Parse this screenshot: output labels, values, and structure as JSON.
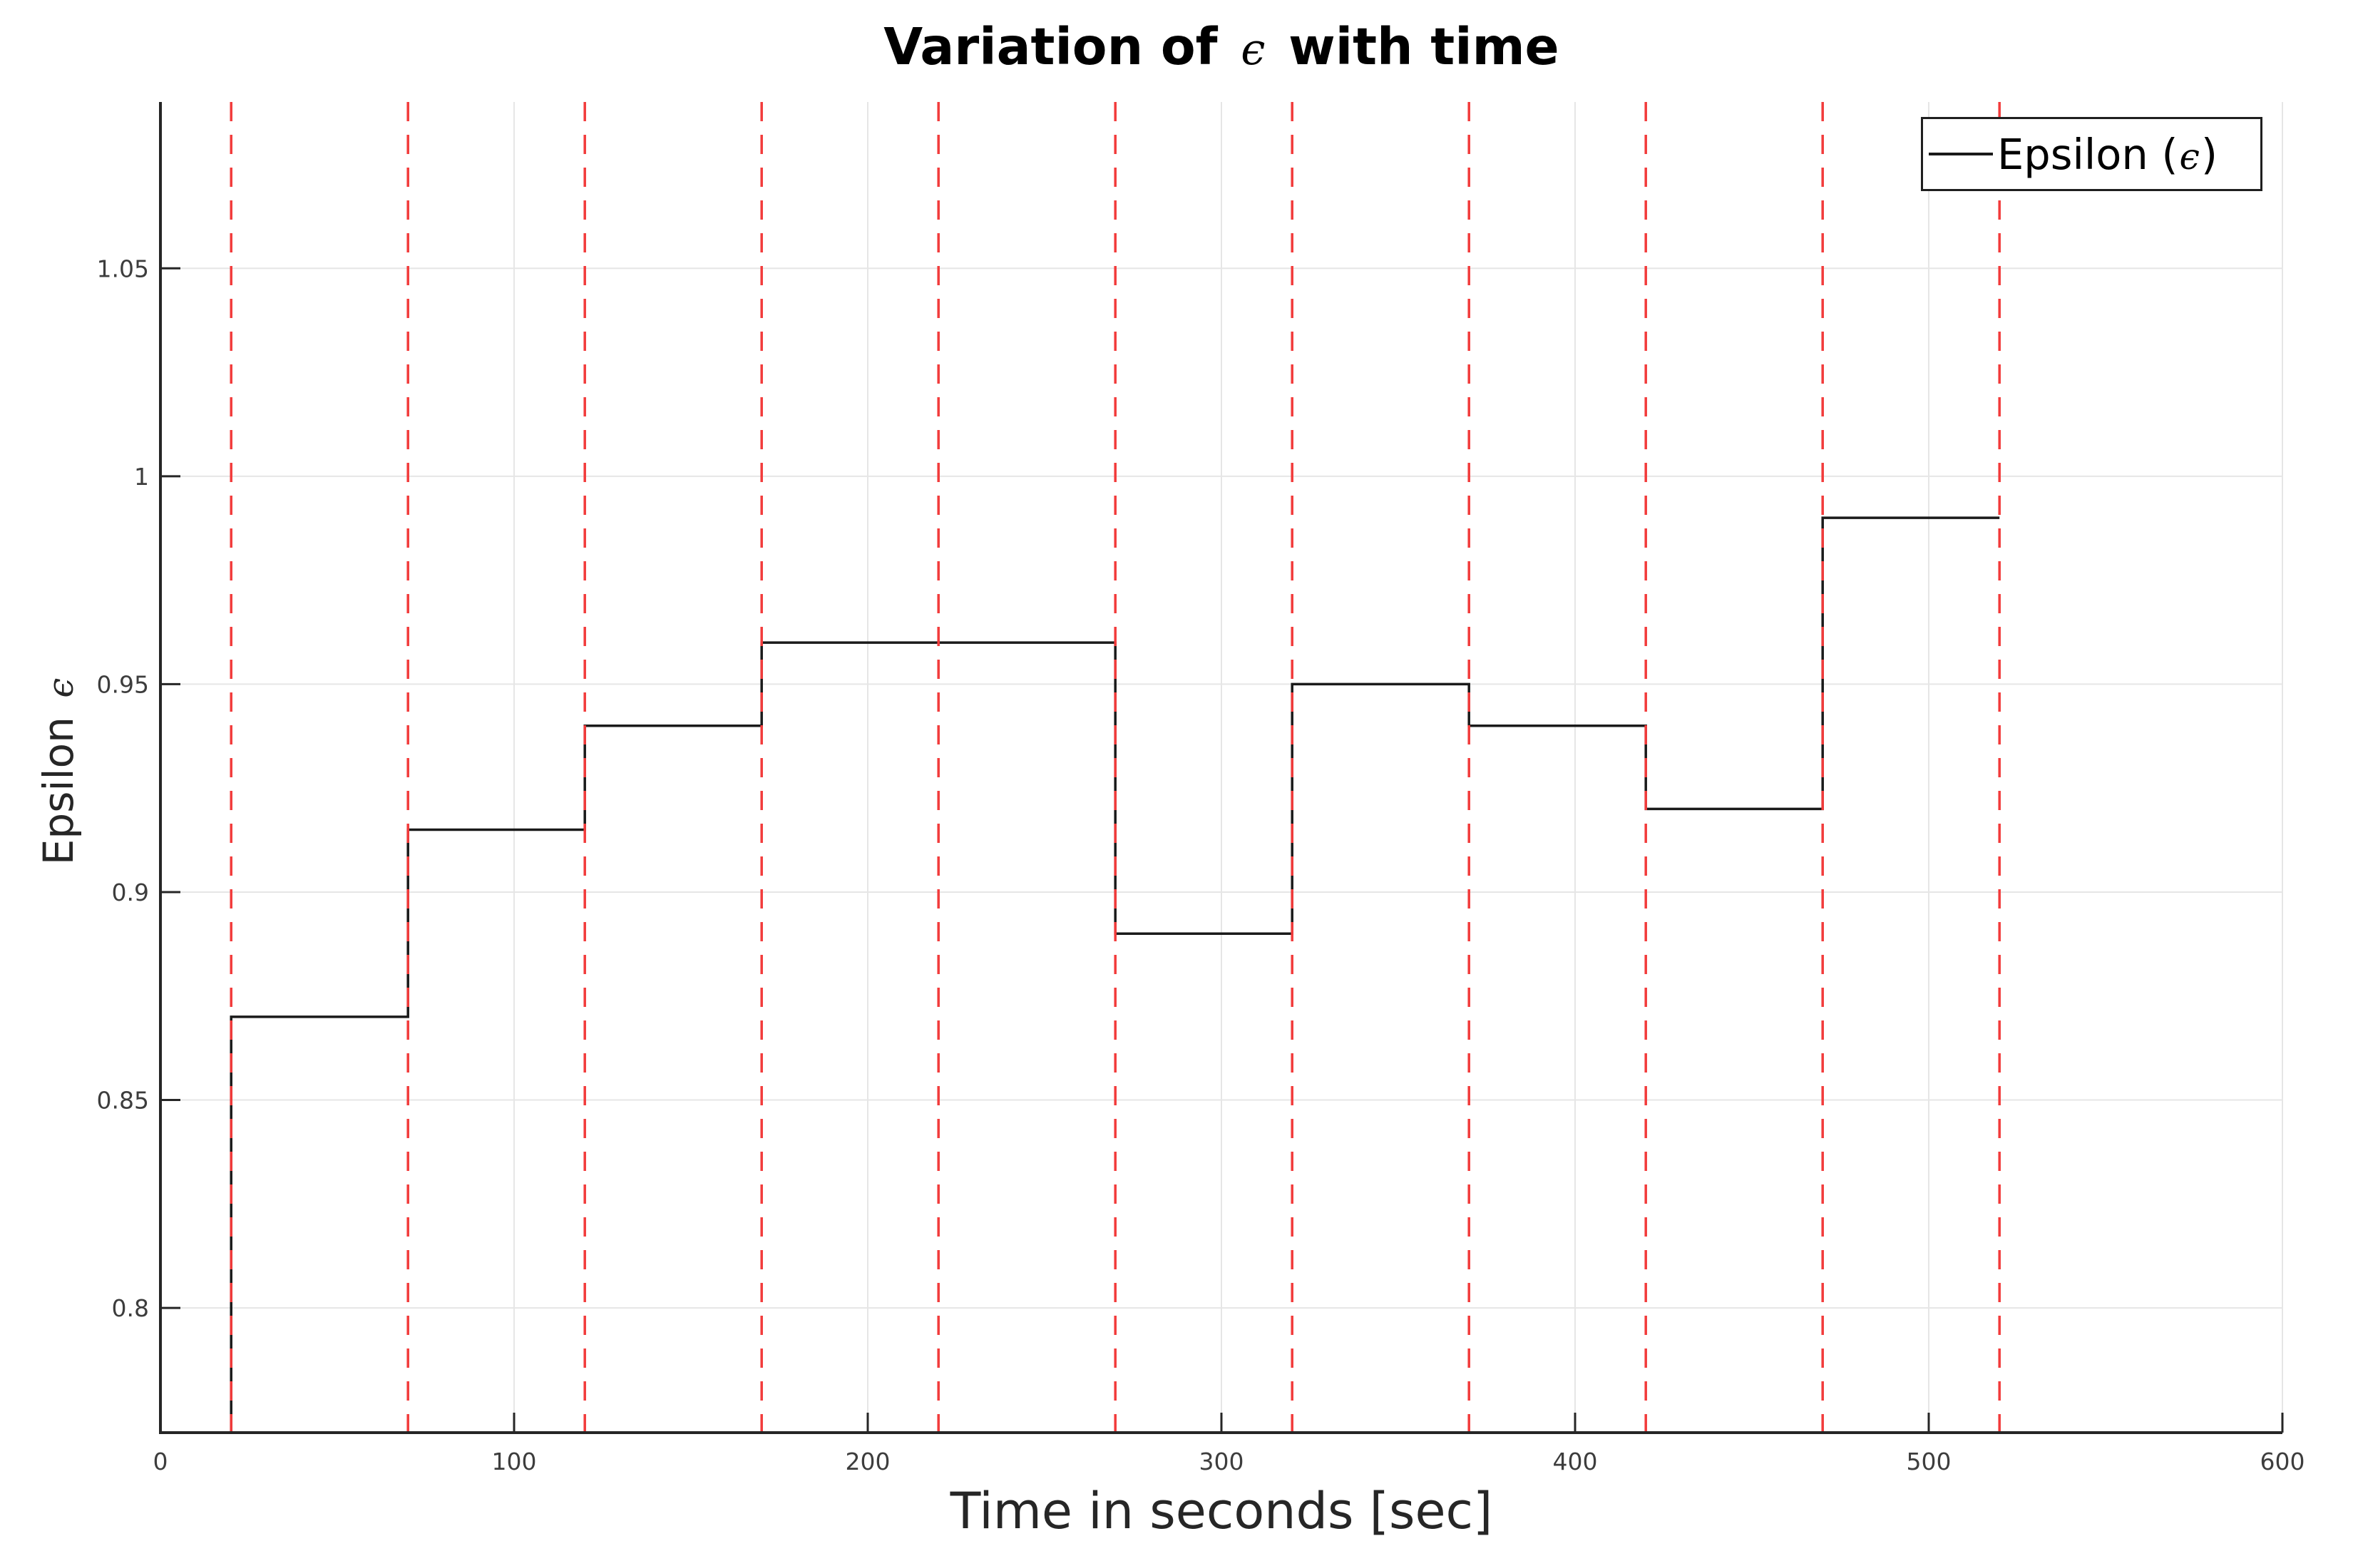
{
  "title": {
    "prefix": "Variation of ",
    "symbol": "ϵ",
    "suffix": " with time",
    "full": "Variation of ϵ with time"
  },
  "axes": {
    "xlabel": "Time in seconds [sec]",
    "ylabel_prefix": "Epsilon ",
    "ylabel_symbol": "ϵ",
    "x_tick_labels": [
      "0",
      "100",
      "200",
      "300",
      "400",
      "500",
      "600"
    ],
    "y_tick_labels": [
      "0.8",
      "0.85",
      "0.9",
      "0.95",
      "1",
      "1.05"
    ]
  },
  "legend": {
    "label_prefix": "Epsilon (",
    "symbol": "ϵ",
    "label_suffix": ")",
    "full": "Epsilon (ϵ)",
    "position": "top-right"
  },
  "style": {
    "line_color": "#1a1a1a",
    "vline_color": "#f23b3b",
    "grid_color": "#e6e6e6",
    "spine_color": "#262626",
    "tick_label_color": "#3d3d3d",
    "background": "#ffffff"
  },
  "chart_data": {
    "type": "line",
    "subtype": "step",
    "title": "Variation of ϵ with time",
    "xlabel": "Time in seconds [sec]",
    "ylabel": "Epsilon ϵ",
    "xlim": [
      0,
      600
    ],
    "ylim": [
      0.77,
      1.09
    ],
    "x_ticks": [
      0,
      100,
      200,
      300,
      400,
      500,
      600
    ],
    "y_ticks": [
      0.8,
      0.85,
      0.9,
      0.95,
      1.0,
      1.05
    ],
    "grid": true,
    "legend_entries": [
      "Epsilon (ϵ)"
    ],
    "series": [
      {
        "name": "Epsilon (ϵ)",
        "color": "#1a1a1a",
        "step_edges_x": [
          20,
          70,
          120,
          170,
          220,
          270,
          320,
          370,
          420,
          470,
          520
        ],
        "step_values_y": [
          0.87,
          0.915,
          0.94,
          0.96,
          0.96,
          0.89,
          0.95,
          0.94,
          0.92,
          0.99
        ],
        "starts_at_axis_bottom": true
      }
    ],
    "vlines": {
      "x": [
        20,
        70,
        120,
        170,
        220,
        270,
        320,
        370,
        420,
        470,
        520
      ],
      "color": "#f23b3b",
      "style": "dashed"
    }
  }
}
